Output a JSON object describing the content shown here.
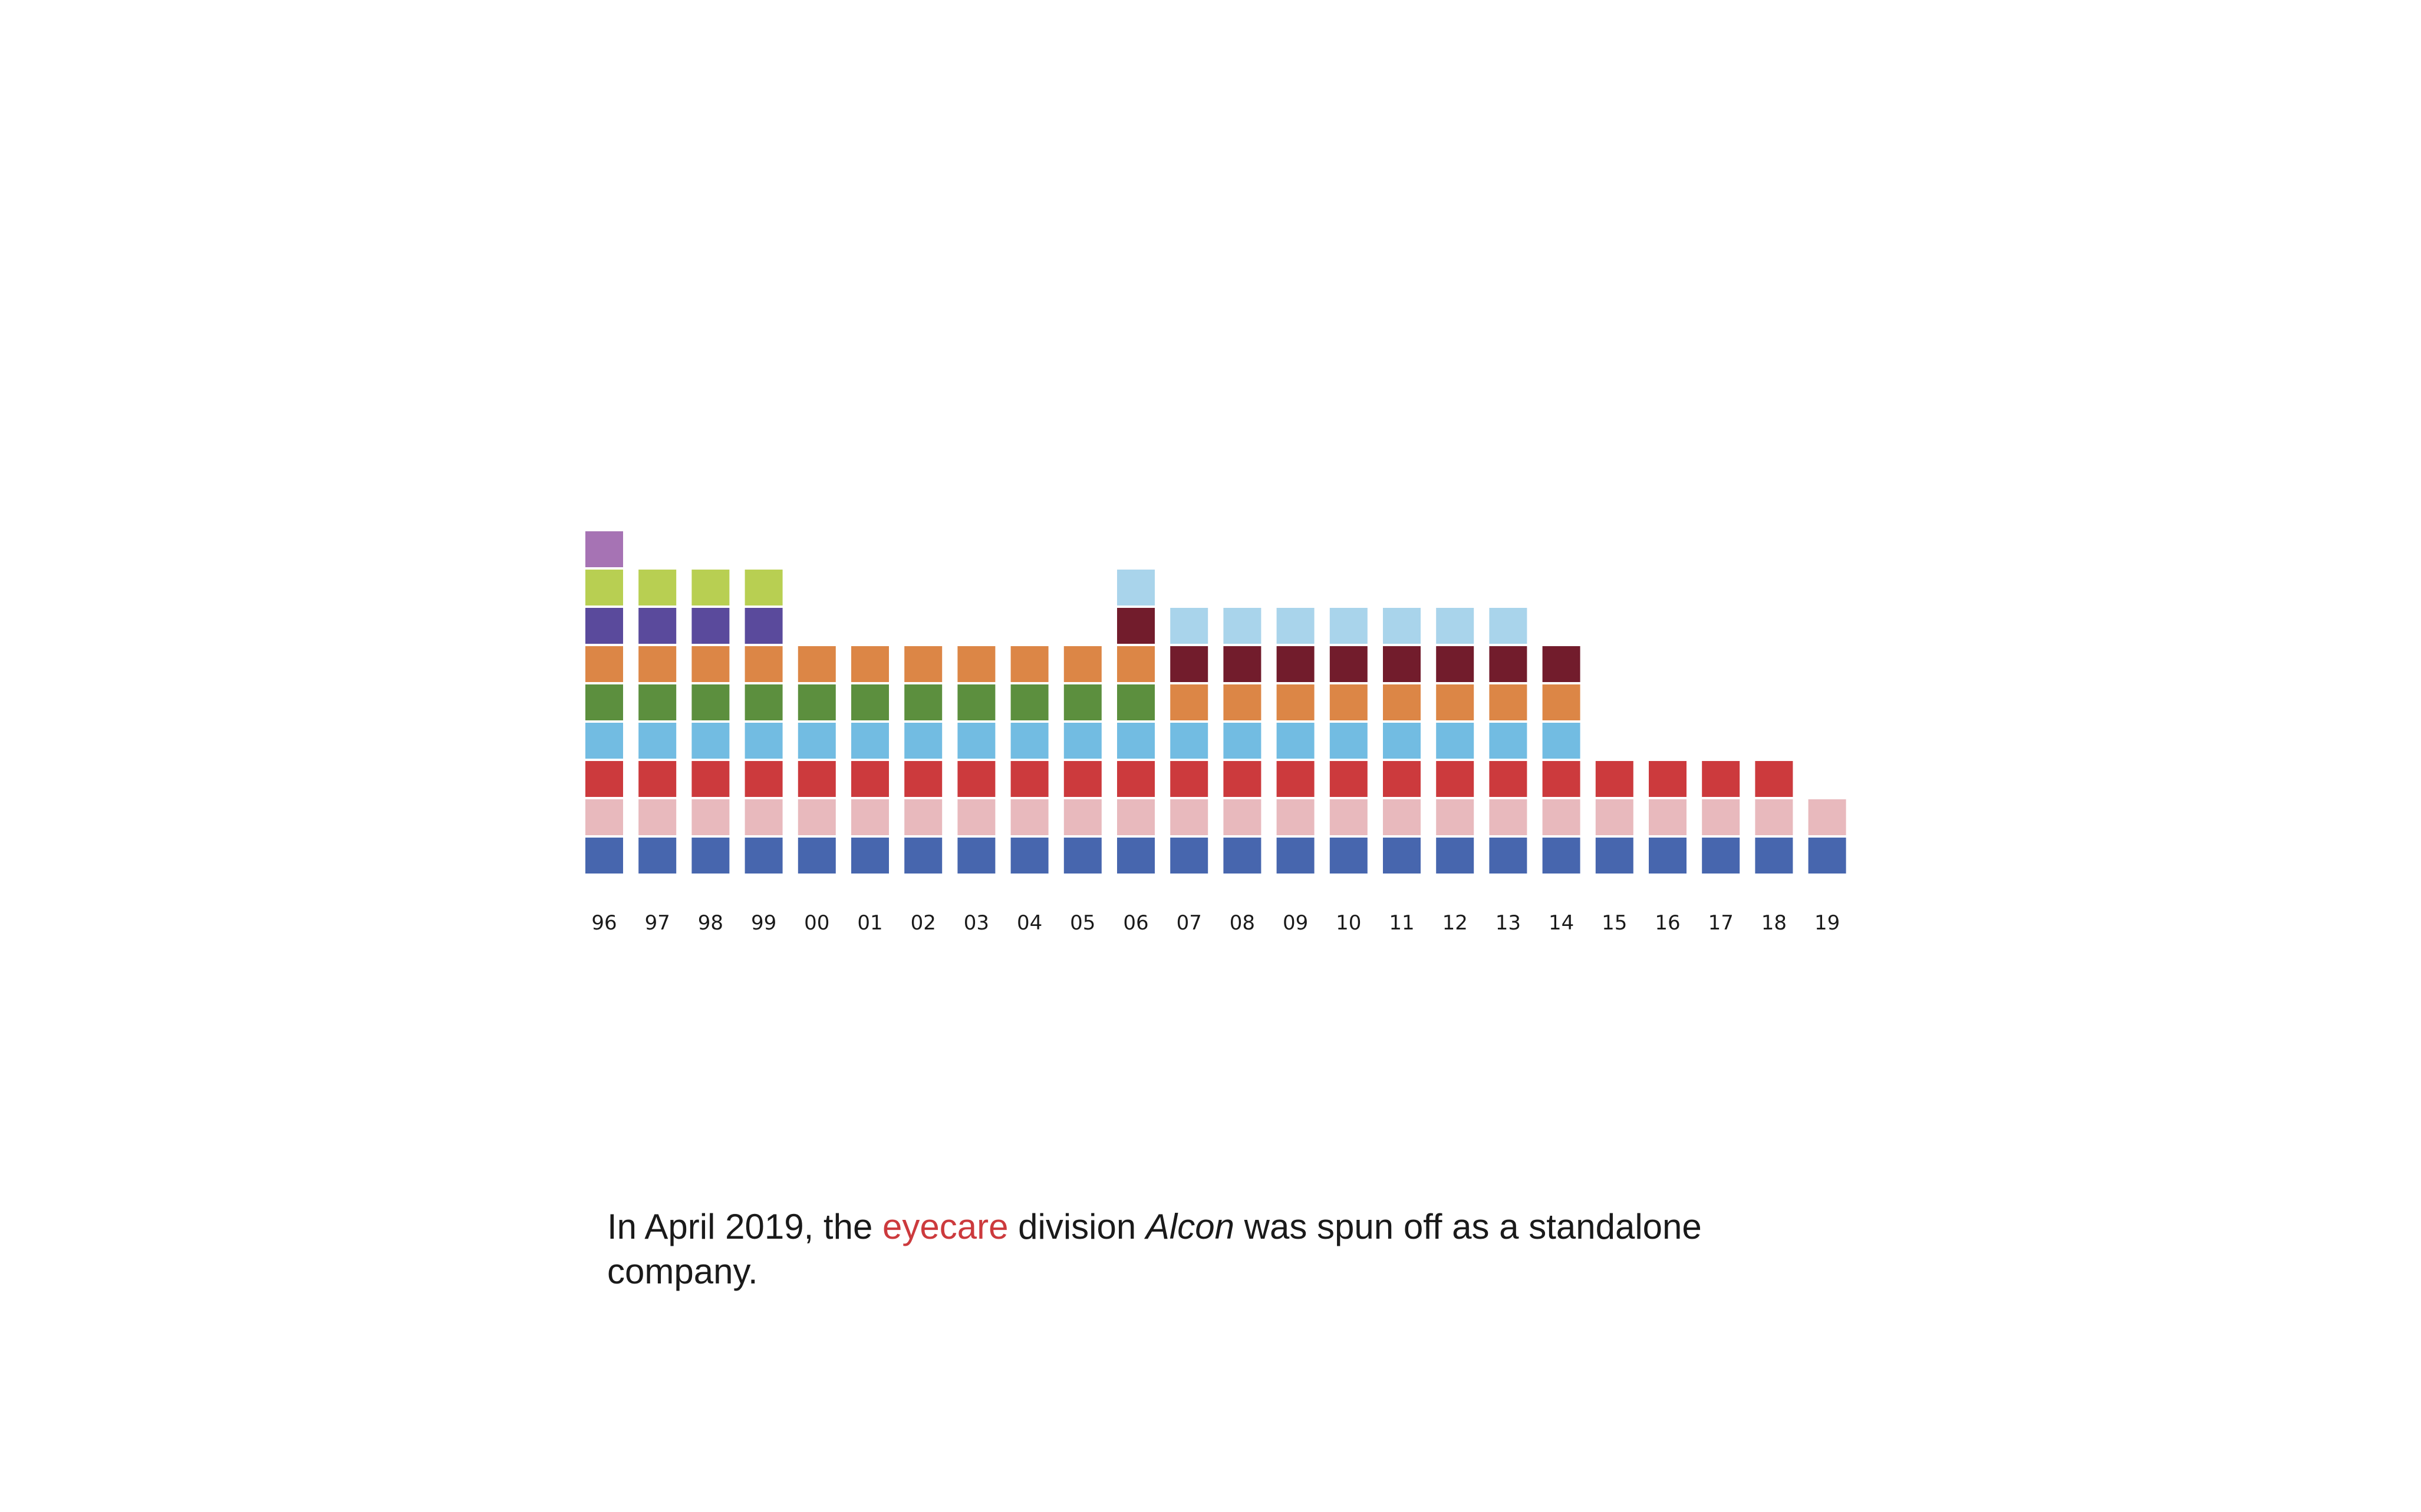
{
  "chart_data": {
    "type": "bar",
    "subtype": "stacked-blocks",
    "categories": [
      "96",
      "97",
      "98",
      "99",
      "00",
      "01",
      "02",
      "03",
      "04",
      "05",
      "06",
      "07",
      "08",
      "09",
      "10",
      "11",
      "12",
      "13",
      "14",
      "15",
      "16",
      "17",
      "18",
      "19"
    ],
    "series": [
      {
        "color": "#4766ae",
        "values": [
          1,
          1,
          1,
          1,
          1,
          1,
          1,
          1,
          1,
          1,
          1,
          1,
          1,
          1,
          1,
          1,
          1,
          1,
          1,
          1,
          1,
          1,
          1,
          1
        ]
      },
      {
        "color": "#e8b9bd",
        "values": [
          1,
          1,
          1,
          1,
          1,
          1,
          1,
          1,
          1,
          1,
          1,
          1,
          1,
          1,
          1,
          1,
          1,
          1,
          1,
          1,
          1,
          1,
          1,
          1
        ]
      },
      {
        "color": "#cc3a3d",
        "values": [
          1,
          1,
          1,
          1,
          1,
          1,
          1,
          1,
          1,
          1,
          1,
          1,
          1,
          1,
          1,
          1,
          1,
          1,
          1,
          1,
          1,
          1,
          1,
          0
        ]
      },
      {
        "color": "#72bce2",
        "values": [
          1,
          1,
          1,
          1,
          1,
          1,
          1,
          1,
          1,
          1,
          1,
          1,
          1,
          1,
          1,
          1,
          1,
          1,
          1,
          0,
          0,
          0,
          0,
          0
        ]
      },
      {
        "color": "#5c8f3e",
        "values": [
          1,
          1,
          1,
          1,
          1,
          1,
          1,
          1,
          1,
          1,
          1,
          0,
          0,
          0,
          0,
          0,
          0,
          0,
          0,
          0,
          0,
          0,
          0,
          0
        ]
      },
      {
        "color": "#dc8646",
        "values": [
          1,
          1,
          1,
          1,
          1,
          1,
          1,
          1,
          1,
          1,
          1,
          1,
          1,
          1,
          1,
          1,
          1,
          1,
          1,
          0,
          0,
          0,
          0,
          0
        ]
      },
      {
        "color": "#5a4a9c",
        "values": [
          1,
          1,
          1,
          1,
          0,
          0,
          0,
          0,
          0,
          0,
          0,
          0,
          0,
          0,
          0,
          0,
          0,
          0,
          0,
          0,
          0,
          0,
          0,
          0
        ]
      },
      {
        "color": "#721c2c",
        "values": [
          0,
          0,
          0,
          0,
          0,
          0,
          0,
          0,
          0,
          0,
          1,
          1,
          1,
          1,
          1,
          1,
          1,
          1,
          1,
          0,
          0,
          0,
          0,
          0
        ]
      },
      {
        "color": "#b8cf52",
        "values": [
          1,
          1,
          1,
          1,
          0,
          0,
          0,
          0,
          0,
          0,
          0,
          0,
          0,
          0,
          0,
          0,
          0,
          0,
          0,
          0,
          0,
          0,
          0,
          0
        ]
      },
      {
        "color": "#a9d4eb",
        "values": [
          0,
          0,
          0,
          0,
          0,
          0,
          0,
          0,
          0,
          0,
          1,
          1,
          1,
          1,
          1,
          1,
          1,
          1,
          0,
          0,
          0,
          0,
          0,
          0
        ]
      },
      {
        "color": "#a673b4",
        "values": [
          1,
          0,
          0,
          0,
          0,
          0,
          0,
          0,
          0,
          0,
          0,
          0,
          0,
          0,
          0,
          0,
          0,
          0,
          0,
          0,
          0,
          0,
          0,
          0
        ]
      }
    ],
    "stack_orders": {
      "default": [
        0,
        1,
        2,
        3,
        4,
        5,
        6,
        8,
        10
      ],
      "06": [
        0,
        1,
        2,
        3,
        4,
        5,
        7,
        9
      ],
      "late": [
        0,
        1,
        2,
        3,
        5,
        7,
        9
      ]
    },
    "title": "",
    "xlabel": "",
    "ylabel": "",
    "grid": false,
    "legend": "none"
  },
  "caption": {
    "before": "In April 2019, the ",
    "highlight": "eyecare",
    "middle": " division ",
    "italic": "Alcon",
    "after": " was spun off as a standalone company.",
    "highlight_color": "#cc3a3d"
  }
}
